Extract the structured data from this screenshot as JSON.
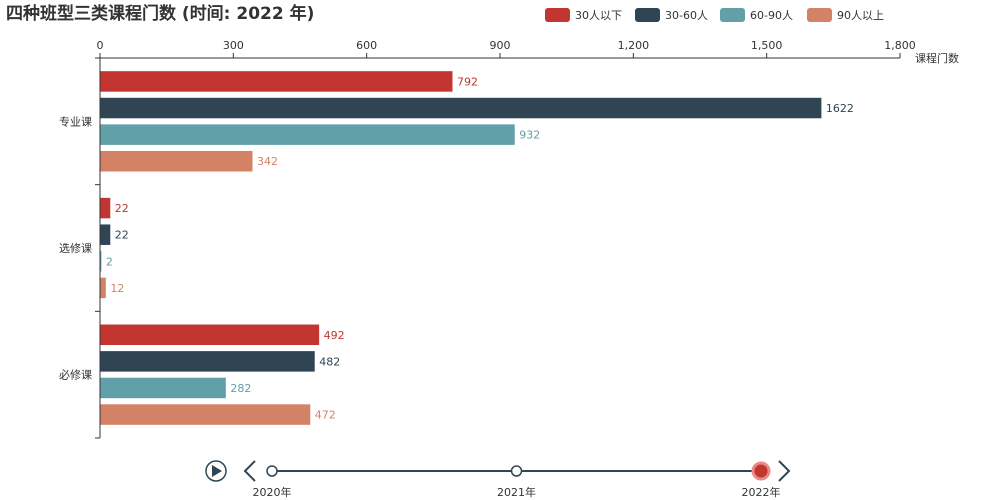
{
  "chart_data": {
    "type": "bar",
    "orientation": "horizontal",
    "title": "四种班型三类课程门数 (时间: 2022 年)",
    "x_axis_name": "课程门数",
    "xlim": [
      0,
      1800
    ],
    "x_ticks": [
      "0",
      "300",
      "600",
      "900",
      "1,200",
      "1,500",
      "1,800"
    ],
    "x_tick_values": [
      0,
      300,
      600,
      900,
      1200,
      1500,
      1800
    ],
    "categories": [
      "专业课",
      "选修课",
      "必修课"
    ],
    "series": [
      {
        "name": "30人以下",
        "color": "#c23531",
        "values": [
          792,
          22,
          492
        ]
      },
      {
        "name": "30-60人",
        "color": "#2f4554",
        "values": [
          1622,
          22,
          482
        ]
      },
      {
        "name": "60-90人",
        "color": "#61a0a8",
        "values": [
          932,
          2,
          282
        ]
      },
      {
        "name": "90人以上",
        "color": "#d48265",
        "values": [
          342,
          12,
          472
        ]
      }
    ],
    "legend_position": "top-right",
    "grid": false
  },
  "timeline": {
    "labels": [
      "2020年",
      "2021年",
      "2022年"
    ],
    "current_index": 2,
    "play_icon": "play-icon",
    "prev_icon": "chevron-left-icon",
    "next_icon": "chevron-right-icon",
    "color": "#304654",
    "active_color": "#c23531"
  }
}
